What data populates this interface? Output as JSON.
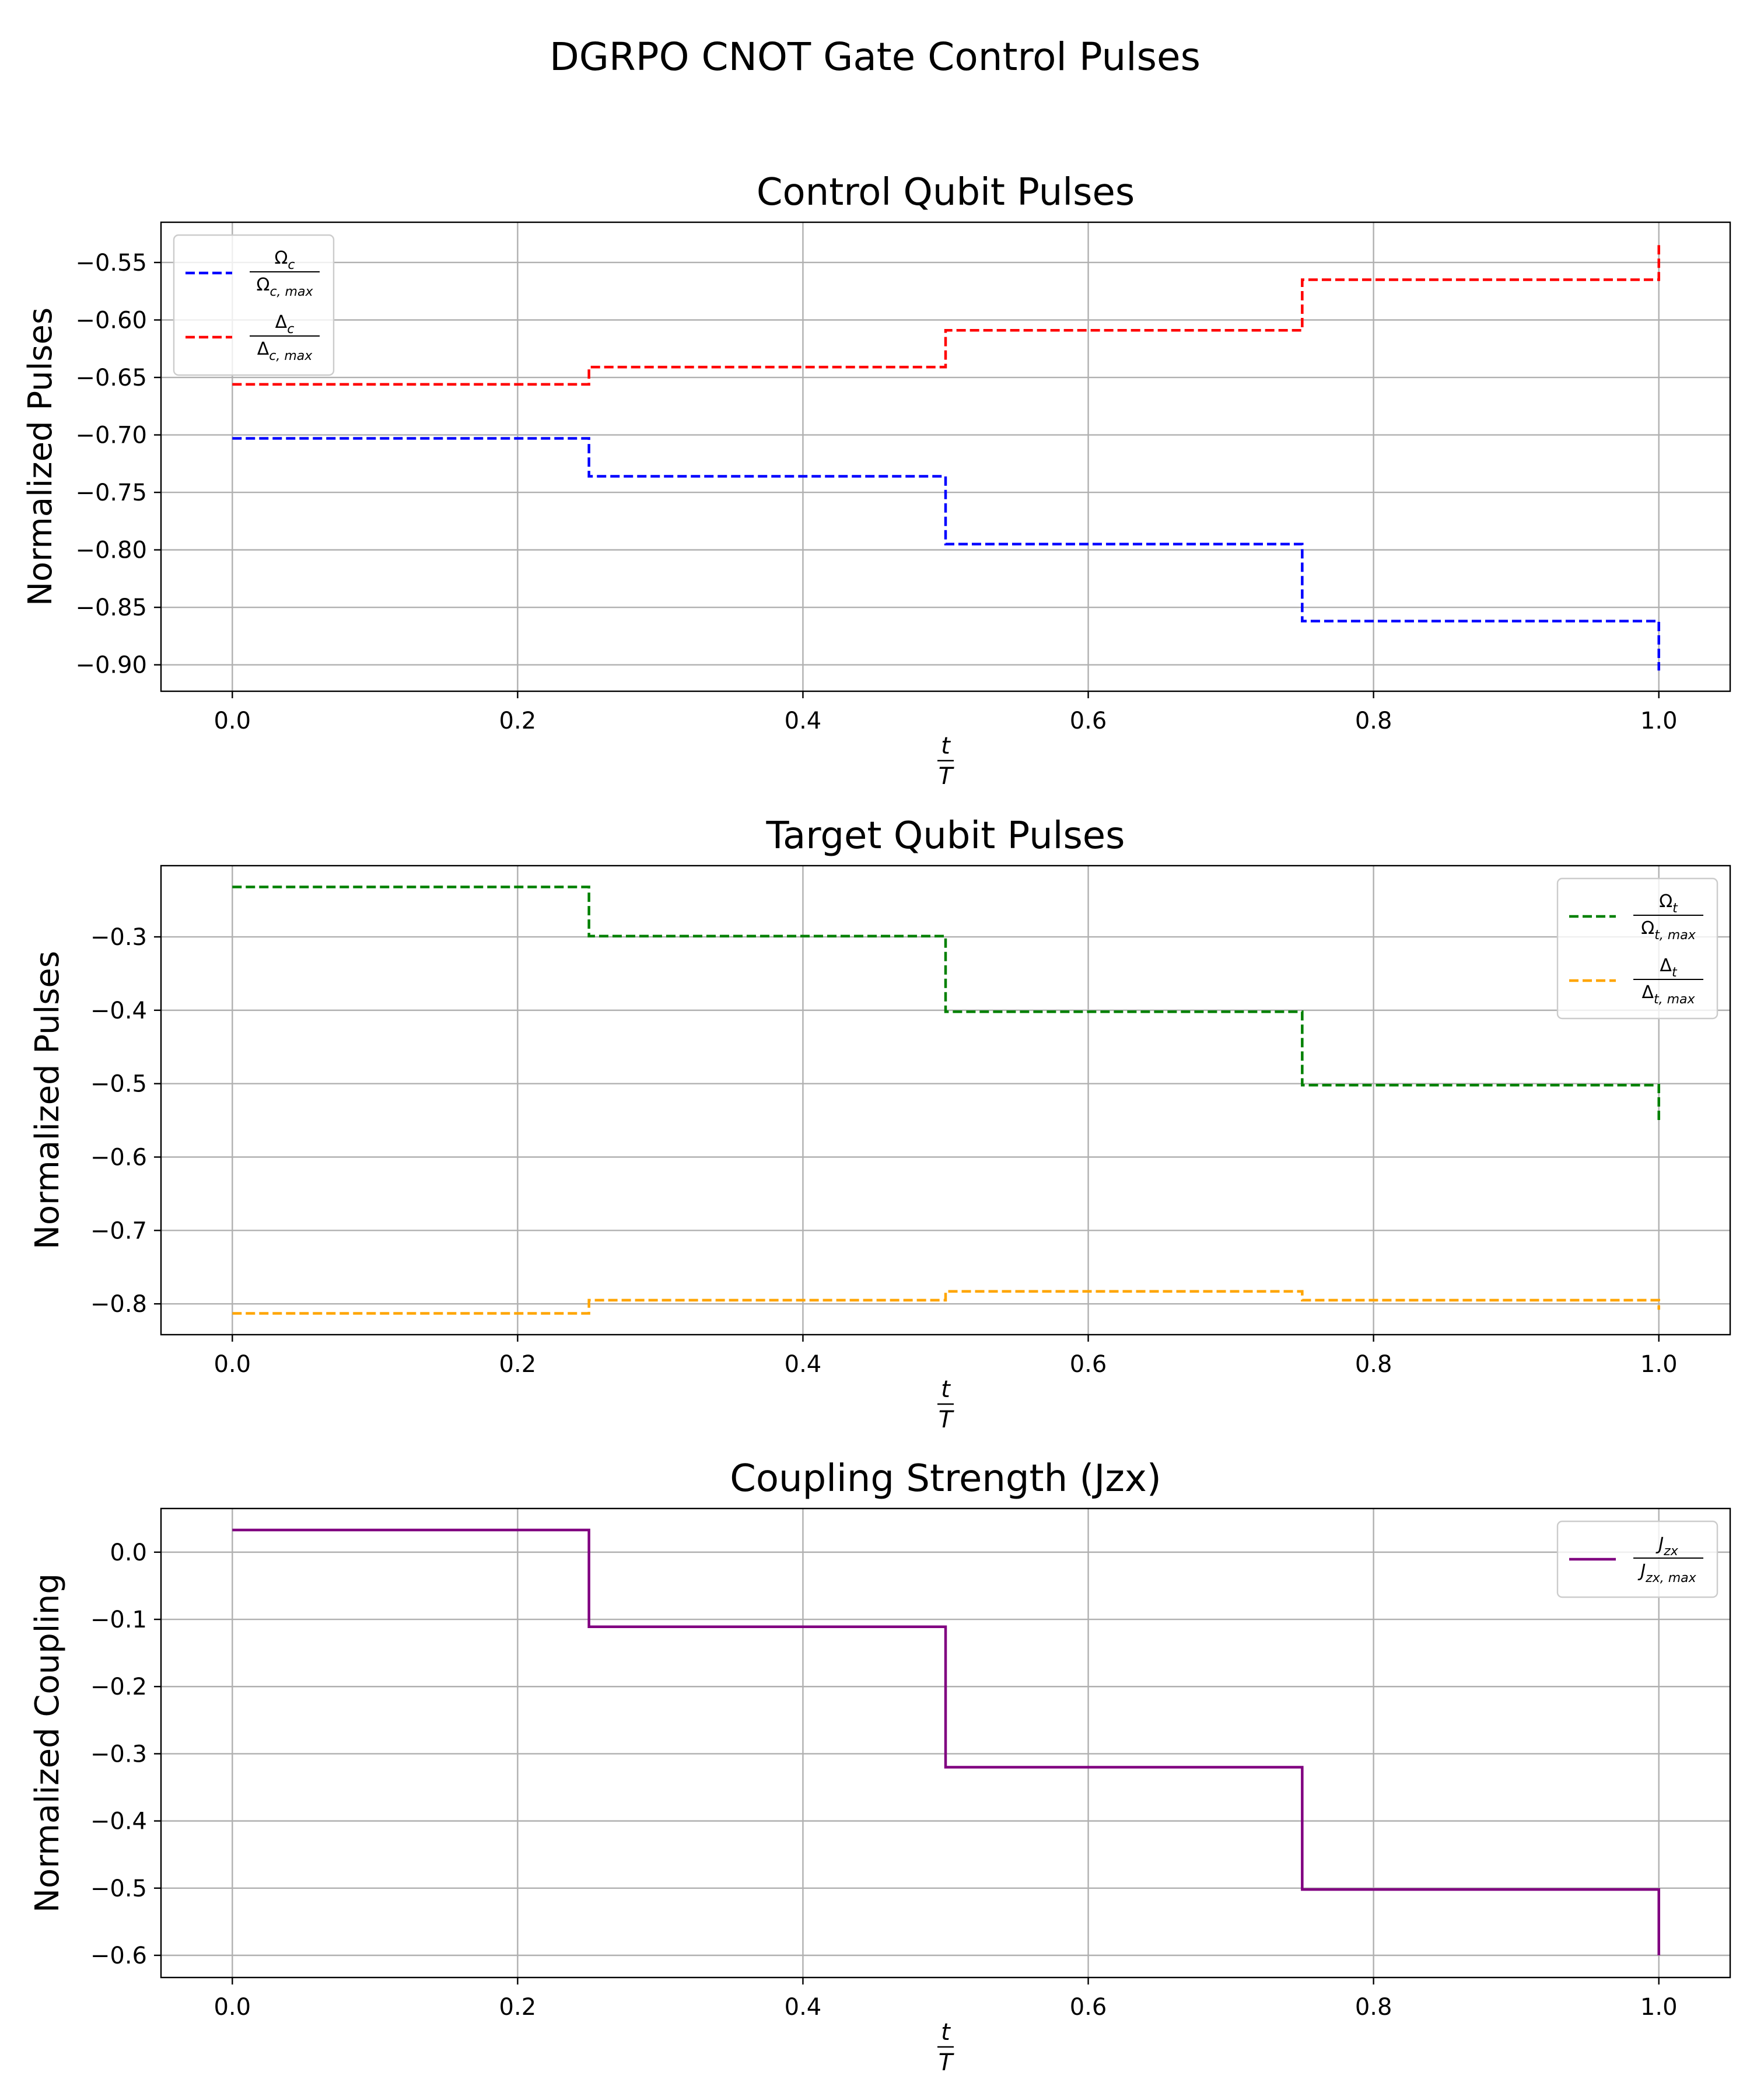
{
  "figure": {
    "title": "DGRPO CNOT Gate Control Pulses"
  },
  "chart_data": [
    {
      "type": "line",
      "step": "post",
      "title": "Control Qubit Pulses",
      "xlabel": "t/T",
      "ylabel": "Normalized Pulses",
      "xlim": [
        -0.05,
        1.05
      ],
      "ylim": [
        -0.923,
        -0.515
      ],
      "xticks": [
        0.0,
        0.2,
        0.4,
        0.6,
        0.8,
        1.0
      ],
      "xtick_labels": [
        "0.0",
        "0.2",
        "0.4",
        "0.6",
        "0.8",
        "1.0"
      ],
      "yticks": [
        -0.9,
        -0.85,
        -0.8,
        -0.75,
        -0.7,
        -0.65,
        -0.6,
        -0.55
      ],
      "ytick_labels": [
        "−0.90",
        "−0.85",
        "−0.80",
        "−0.75",
        "−0.70",
        "−0.65",
        "−0.60",
        "−0.55"
      ],
      "grid": true,
      "legend_placement": "upper-left",
      "x": [
        0.0,
        0.25,
        0.5,
        0.75,
        1.0
      ],
      "series": [
        {
          "name": "Ω_c / Ω_c,max",
          "legend_num": "Ω",
          "legend_num_sub": "c",
          "legend_den": "Ω",
          "legend_den_sub": "c, max",
          "values": [
            -0.703,
            -0.736,
            -0.795,
            -0.862,
            -0.905
          ],
          "color": "#0000ff",
          "dash": true
        },
        {
          "name": "Δ_c / Δ_c,max",
          "legend_num": "Δ",
          "legend_num_sub": "c",
          "legend_den": "Δ",
          "legend_den_sub": "c, max",
          "values": [
            -0.656,
            -0.641,
            -0.609,
            -0.565,
            -0.533
          ],
          "color": "#ff0000",
          "dash": true
        }
      ]
    },
    {
      "type": "line",
      "step": "post",
      "title": "Target Qubit Pulses",
      "xlabel": "t/T",
      "ylabel": "Normalized Pulses",
      "xlim": [
        -0.05,
        1.05
      ],
      "ylim": [
        -0.842,
        -0.203
      ],
      "xticks": [
        0.0,
        0.2,
        0.4,
        0.6,
        0.8,
        1.0
      ],
      "xtick_labels": [
        "0.0",
        "0.2",
        "0.4",
        "0.6",
        "0.8",
        "1.0"
      ],
      "yticks": [
        -0.8,
        -0.7,
        -0.6,
        -0.5,
        -0.4,
        -0.3
      ],
      "ytick_labels": [
        "−0.8",
        "−0.7",
        "−0.6",
        "−0.5",
        "−0.4",
        "−0.3"
      ],
      "grid": true,
      "legend_placement": "upper-right",
      "x": [
        0.0,
        0.25,
        0.5,
        0.75,
        1.0
      ],
      "series": [
        {
          "name": "Ω_t / Ω_t,max",
          "legend_num": "Ω",
          "legend_num_sub": "t",
          "legend_den": "Ω",
          "legend_den_sub": "t, max",
          "values": [
            -0.232,
            -0.299,
            -0.402,
            -0.502,
            -0.553
          ],
          "color": "#008000",
          "dash": true
        },
        {
          "name": "Δ_t / Δ_t,max",
          "legend_num": "Δ",
          "legend_num_sub": "t",
          "legend_den": "Δ",
          "legend_den_sub": "t, max",
          "values": [
            -0.813,
            -0.795,
            -0.783,
            -0.795,
            -0.808
          ],
          "color": "#ffa500",
          "dash": true
        }
      ]
    },
    {
      "type": "line",
      "step": "post",
      "title": "Coupling Strength (Jzx)",
      "xlabel": "t/T",
      "ylabel": "Normalized Coupling",
      "xlim": [
        -0.05,
        1.05
      ],
      "ylim": [
        -0.633,
        0.065
      ],
      "xticks": [
        0.0,
        0.2,
        0.4,
        0.6,
        0.8,
        1.0
      ],
      "xtick_labels": [
        "0.0",
        "0.2",
        "0.4",
        "0.6",
        "0.8",
        "1.0"
      ],
      "yticks": [
        -0.6,
        -0.5,
        -0.4,
        -0.3,
        -0.2,
        -0.1,
        0.0
      ],
      "ytick_labels": [
        "−0.6",
        "−0.5",
        "−0.4",
        "−0.3",
        "−0.2",
        "−0.1",
        "0.0"
      ],
      "grid": true,
      "legend_placement": "upper-right",
      "x": [
        0.0,
        0.25,
        0.5,
        0.75,
        1.0
      ],
      "series": [
        {
          "name": "J_zx / J_zx,max",
          "legend_num": "J",
          "legend_num_sub": "zx",
          "legend_den": "J",
          "legend_den_sub": "zx, max",
          "values": [
            0.033,
            -0.111,
            -0.32,
            -0.502,
            -0.6
          ],
          "color": "#800080",
          "dash": false
        }
      ]
    }
  ]
}
